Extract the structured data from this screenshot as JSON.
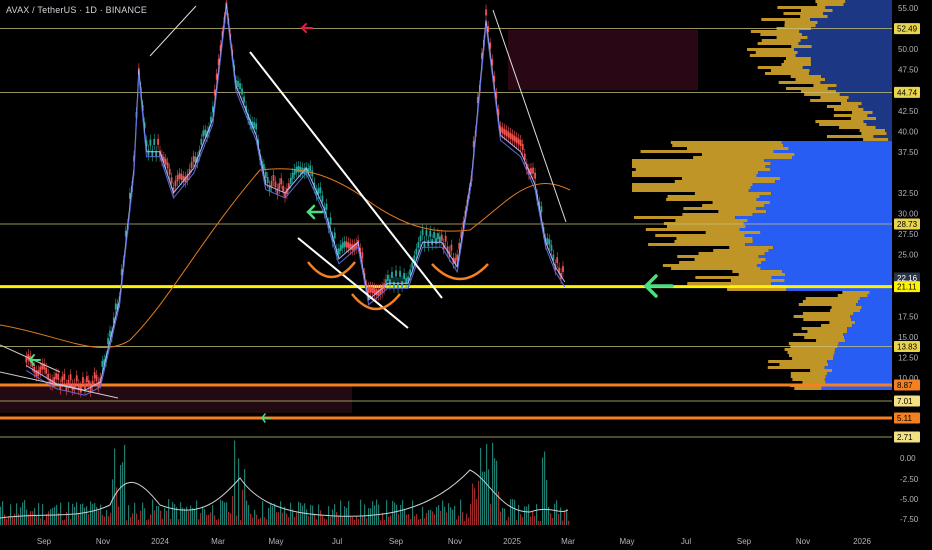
{
  "header": {
    "symbol": "AVAX / TetherUS · 1D · BINANCE"
  },
  "chart_data": {
    "type": "candlestick",
    "title": "AVAX / TetherUS · 1D · BINANCE",
    "price_axis": {
      "ticks": [
        55.0,
        50.0,
        47.5,
        42.5,
        40.0,
        37.5,
        32.5,
        30.0,
        27.5,
        25.0,
        17.5,
        15.0,
        12.5,
        10.0
      ],
      "range": [
        0,
        56
      ]
    },
    "time_axis": {
      "labels": [
        "Sep",
        "Nov",
        "2024",
        "Mar",
        "May",
        "Jul",
        "Sep",
        "Nov",
        "2025",
        "Mar",
        "May",
        "Jul",
        "Sep",
        "Nov",
        "2026"
      ]
    },
    "price_tags": [
      {
        "value": "52.49",
        "color": "#e9d44e",
        "text_color": "#000000"
      },
      {
        "value": "44.74",
        "color": "#e9d44e",
        "text_color": "#000000"
      },
      {
        "value": "28.73",
        "color": "#e9d44e",
        "text_color": "#000000"
      },
      {
        "value": "22.16",
        "sub": "03:02:05",
        "color": "#2b3444",
        "text_color": "#ffffff",
        "current": true
      },
      {
        "value": "21.11",
        "color": "#fff200",
        "text_color": "#000000"
      },
      {
        "value": "13.83",
        "color": "#e9d44e",
        "text_color": "#000000"
      },
      {
        "value": "8.87",
        "color": "#f5801f",
        "text_color": "#000000"
      },
      {
        "value": "7.01",
        "color": "#f2e085",
        "text_color": "#000000"
      },
      {
        "value": "5.11",
        "color": "#f5801f",
        "text_color": "#000000"
      },
      {
        "value": "2.71",
        "color": "#f2e085",
        "text_color": "#000000"
      }
    ],
    "horizontal_levels": [
      52.49,
      44.74,
      28.73,
      21.11,
      13.83,
      8.87,
      7.01,
      5.11,
      2.71
    ],
    "price_path": [
      [
        "2023-08-15",
        12.0
      ],
      [
        "2023-09-15",
        9.8
      ],
      [
        "2023-10-15",
        9.0
      ],
      [
        "2023-10-31",
        10.0
      ],
      [
        "2023-11-20",
        20.0
      ],
      [
        "2023-12-05",
        36.0
      ],
      [
        "2023-12-10",
        48.0
      ],
      [
        "2023-12-18",
        38.0
      ],
      [
        "2024-01-01",
        38.0
      ],
      [
        "2024-01-15",
        33.0
      ],
      [
        "2024-02-05",
        36.0
      ],
      [
        "2024-02-25",
        42.0
      ],
      [
        "2024-03-10",
        56.0
      ],
      [
        "2024-03-20",
        46.0
      ],
      [
        "2024-04-10",
        40.0
      ],
      [
        "2024-04-20",
        34.0
      ],
      [
        "2024-05-10",
        33.0
      ],
      [
        "2024-06-01",
        36.0
      ],
      [
        "2024-06-20",
        31.0
      ],
      [
        "2024-07-05",
        25.0
      ],
      [
        "2024-07-25",
        27.0
      ],
      [
        "2024-08-05",
        20.0
      ],
      [
        "2024-08-25",
        22.0
      ],
      [
        "2024-09-15",
        22.0
      ],
      [
        "2024-09-30",
        27.0
      ],
      [
        "2024-10-20",
        27.0
      ],
      [
        "2024-11-05",
        24.0
      ],
      [
        "2024-11-20",
        35.0
      ],
      [
        "2024-12-05",
        54.0
      ],
      [
        "2024-12-20",
        40.0
      ],
      [
        "2025-01-10",
        38.0
      ],
      [
        "2025-01-25",
        34.0
      ],
      [
        "2025-02-05",
        27.0
      ],
      [
        "2025-02-15",
        24.0
      ],
      [
        "2025-02-25",
        22.16
      ]
    ],
    "volume_indicator": {
      "ticks": [
        "0.00",
        "-2.50",
        "-5.00",
        "-7.50"
      ]
    },
    "annotations": [
      "support zone 21.11",
      "descending trendline",
      "rounded bottoms"
    ]
  }
}
